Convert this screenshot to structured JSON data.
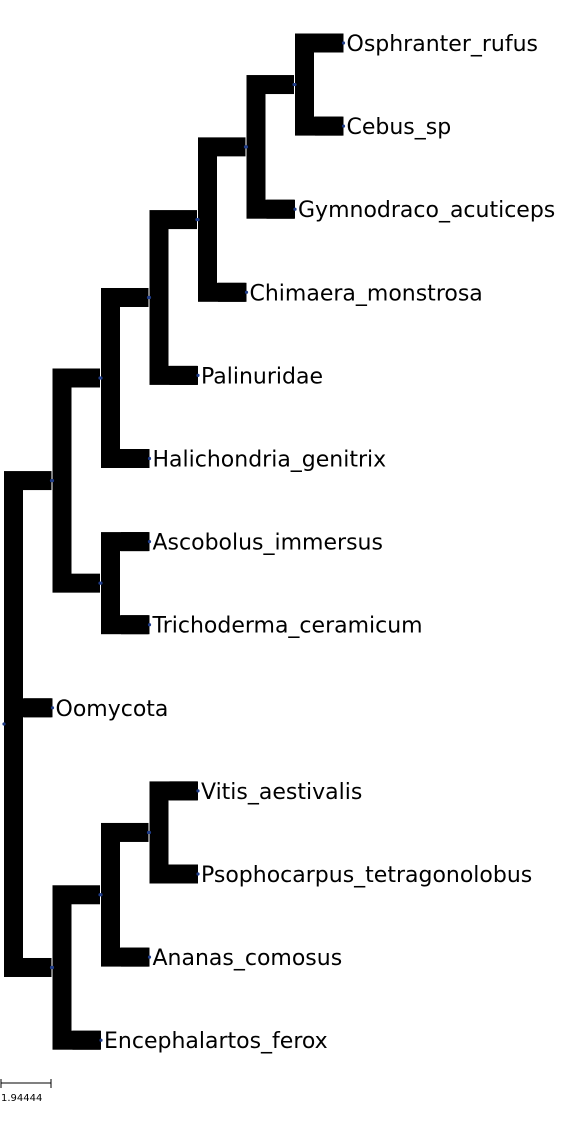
{
  "tree": {
    "scale_bar_label": "1.94444",
    "colors": {
      "branch": "#000000",
      "node_dot": "#1f3c88",
      "label": "#000000",
      "background": "#ffffff"
    },
    "leaves": [
      {
        "id": "osphranter",
        "label": "Osphranter_rufus"
      },
      {
        "id": "cebus",
        "label": "Cebus_sp"
      },
      {
        "id": "gymnodraco",
        "label": "Gymnodraco_acuticeps"
      },
      {
        "id": "chimaera",
        "label": "Chimaera_monstrosa"
      },
      {
        "id": "palinuridae",
        "label": "Palinuridae"
      },
      {
        "id": "halichondria",
        "label": "Halichondria_genitrix"
      },
      {
        "id": "ascobolus",
        "label": "Ascobolus_immersus"
      },
      {
        "id": "trichoderma",
        "label": "Trichoderma_ceramicum"
      },
      {
        "id": "oomycota",
        "label": "Oomycota"
      },
      {
        "id": "vitis",
        "label": "Vitis_aestivalis"
      },
      {
        "id": "psophocarpus",
        "label": "Psophocarpus_tetragonolobus"
      },
      {
        "id": "ananas",
        "label": "Ananas_comosus"
      },
      {
        "id": "encephalartos",
        "label": "Encephalartos_ferox"
      }
    ],
    "newick": "(((((((Osphranter_rufus,Cebus_sp),Gymnodraco_acuticeps),Chimaera_monstrosa),Palinuridae),Halichondria_genitrix),(Ascobolus_immersus,Trichoderma_ceramicum)),Oomycota,(((Vitis_aestivalis,Psophocarpus_tetragonolobus),Ananas_comosus),Encephalartos_ferox));"
  }
}
